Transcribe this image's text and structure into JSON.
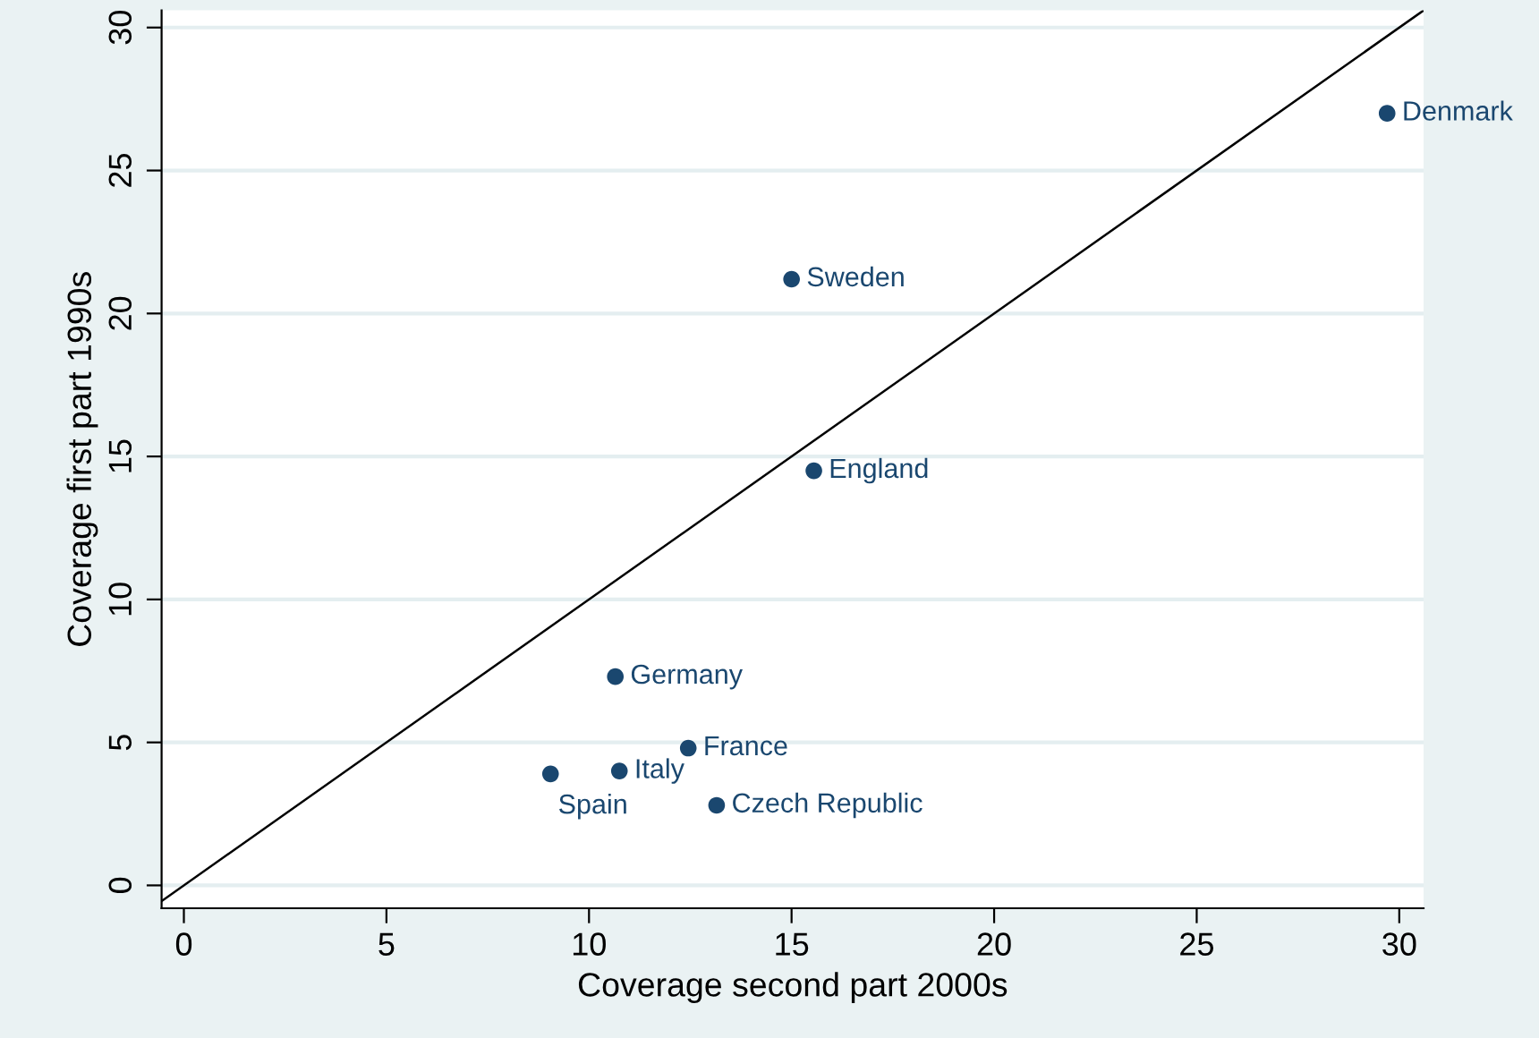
{
  "chart_data": {
    "type": "scatter",
    "xlabel": "Coverage second part 2000s",
    "ylabel": "Coverage first part 1990s",
    "xlim": [
      -0.55,
      30.6
    ],
    "ylim": [
      -0.8,
      30.6
    ],
    "xticks": [
      0,
      5,
      10,
      15,
      20,
      25,
      30
    ],
    "yticks": [
      0,
      5,
      10,
      15,
      20,
      25,
      30
    ],
    "grid": "y",
    "legend": false,
    "marker": "circle",
    "series": [
      {
        "color": "#1a476f",
        "x": [
          15.0,
          15.55,
          10.65,
          12.45,
          10.75,
          9.05,
          13.15,
          29.7
        ],
        "values": [
          21.2,
          14.5,
          7.3,
          4.8,
          4.0,
          3.9,
          2.8,
          27.0
        ]
      },
      {
        "type": "line",
        "color": "#000000",
        "x": [
          -0.55,
          30.6
        ],
        "values": [
          -0.55,
          30.6
        ],
        "marker": "none",
        "line_style": "solid"
      }
    ],
    "annotations": [
      {
        "text": "Sweden",
        "x": 15.0,
        "y": 21.2
      },
      {
        "text": "England",
        "x": 15.55,
        "y": 14.5
      },
      {
        "text": "Germany",
        "x": 10.65,
        "y": 7.3
      },
      {
        "text": "France",
        "x": 12.45,
        "y": 4.8
      },
      {
        "text": "Italy",
        "x": 10.75,
        "y": 4.0
      },
      {
        "text": "Spain",
        "x": 9.05,
        "y": 3.9
      },
      {
        "text": "Czech Republic",
        "x": 13.15,
        "y": 2.8
      },
      {
        "text": "Denmark",
        "x": 29.7,
        "y": 27.0
      }
    ]
  }
}
